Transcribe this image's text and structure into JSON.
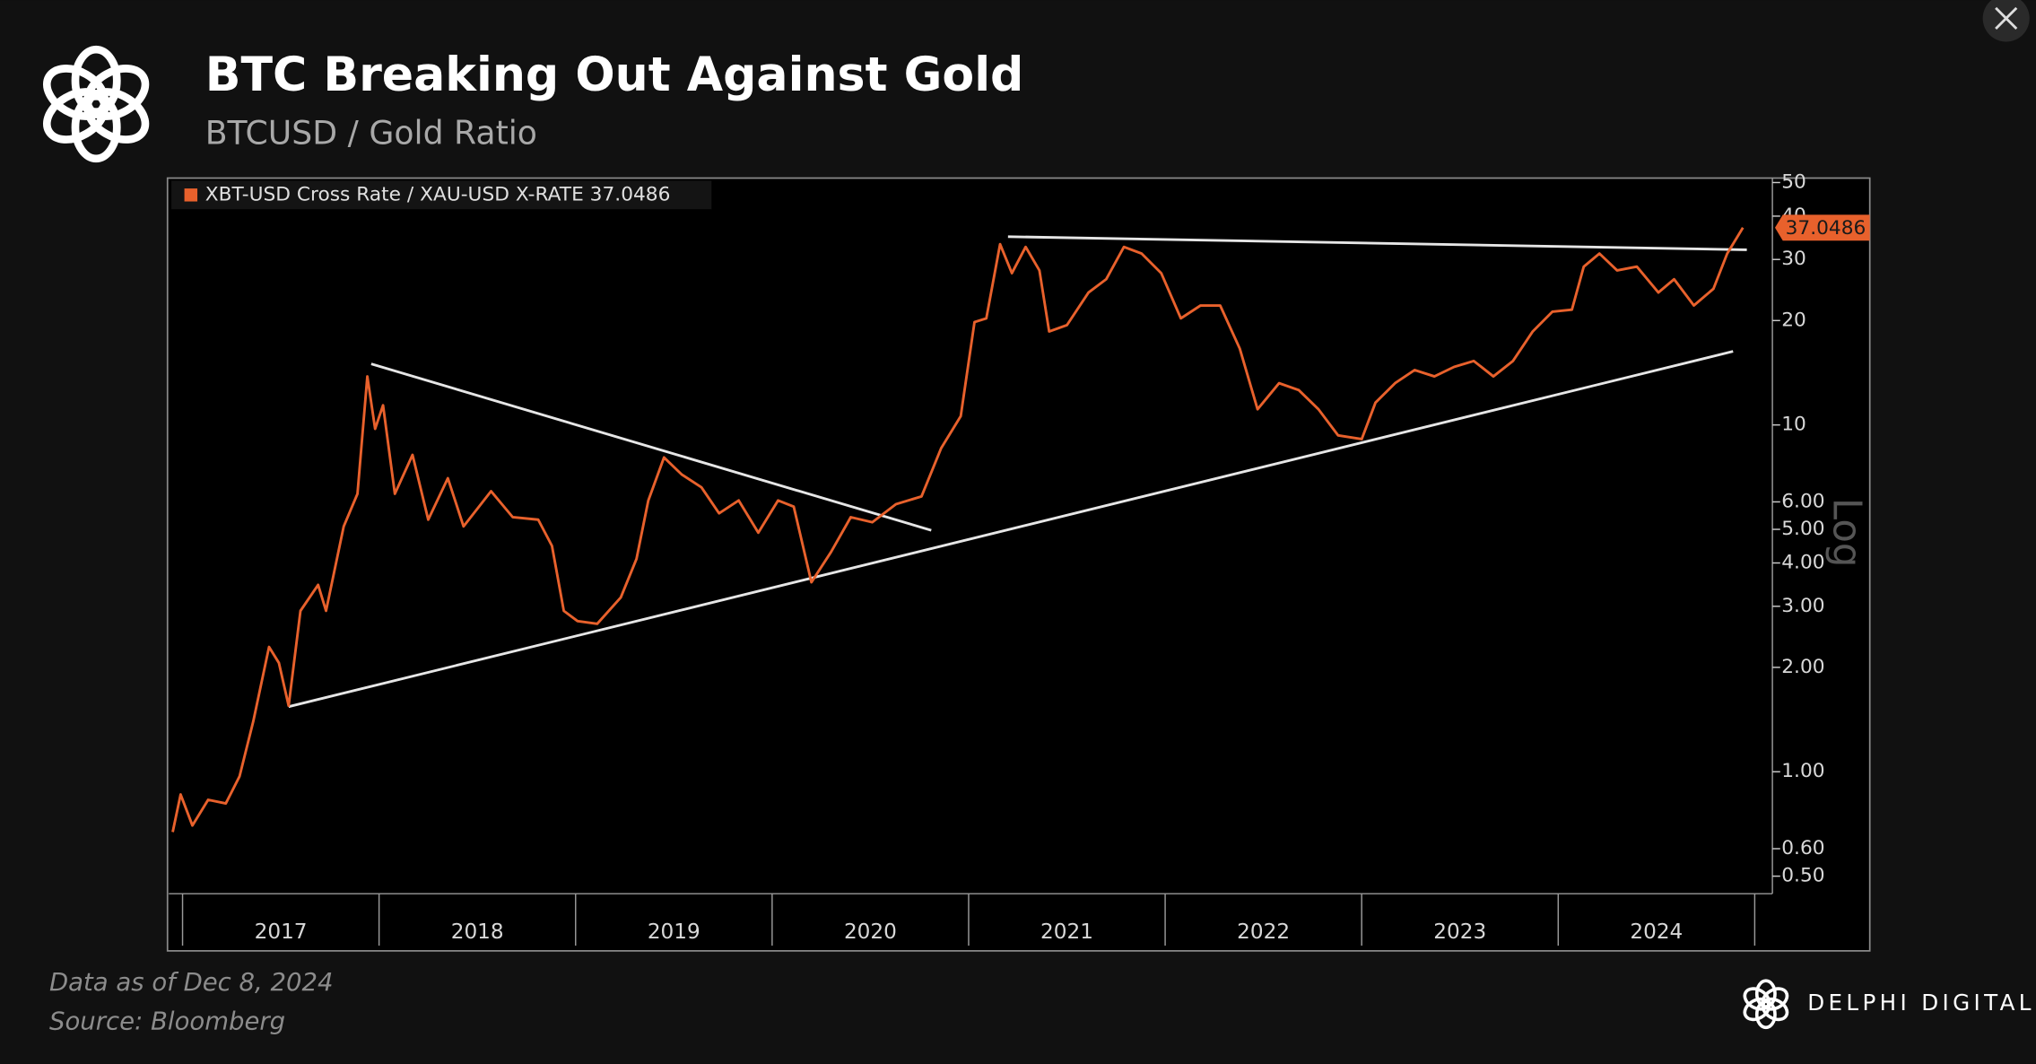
{
  "header": {
    "title": "BTC Breaking Out Against Gold",
    "subtitle": "BTCUSD / Gold Ratio"
  },
  "chart_data": {
    "type": "line",
    "log_y": true,
    "legend": "top-left",
    "scale_label": "Log",
    "x": [
      2016.95,
      2016.99,
      2017.05,
      2017.13,
      2017.22,
      2017.29,
      2017.36,
      2017.44,
      2017.49,
      2017.54,
      2017.6,
      2017.69,
      2017.73,
      2017.82,
      2017.89,
      2017.94,
      2017.98,
      2018.02,
      2018.08,
      2018.17,
      2018.25,
      2018.35,
      2018.43,
      2018.57,
      2018.68,
      2018.81,
      2018.88,
      2018.94,
      2019.01,
      2019.11,
      2019.23,
      2019.31,
      2019.37,
      2019.45,
      2019.54,
      2019.64,
      2019.73,
      2019.83,
      2019.93,
      2020.03,
      2020.11,
      2020.2,
      2020.3,
      2020.4,
      2020.51,
      2020.63,
      2020.76,
      2020.86,
      2020.96,
      2021.03,
      2021.09,
      2021.16,
      2021.22,
      2021.29,
      2021.36,
      2021.41,
      2021.5,
      2021.61,
      2021.7,
      2021.79,
      2021.88,
      2021.98,
      2022.08,
      2022.18,
      2022.28,
      2022.38,
      2022.47,
      2022.58,
      2022.68,
      2022.78,
      2022.88,
      2023.0,
      2023.07,
      2023.17,
      2023.27,
      2023.37,
      2023.47,
      2023.57,
      2023.67,
      2023.77,
      2023.87,
      2023.97,
      2024.07,
      2024.13,
      2024.21,
      2024.3,
      2024.4,
      2024.51,
      2024.59,
      2024.69,
      2024.79,
      2024.86,
      2024.94
    ],
    "series": [
      {
        "name": "XBT-USD Cross Rate / XAU-USD X-RATE 37.0486",
        "color": "#e8612c",
        "values": [
          0.67,
          0.86,
          0.7,
          0.83,
          0.81,
          0.97,
          1.4,
          2.29,
          2.06,
          1.55,
          2.91,
          3.46,
          2.91,
          5.1,
          6.33,
          13.8,
          9.74,
          11.4,
          6.33,
          8.2,
          5.33,
          7.02,
          5.1,
          6.44,
          5.42,
          5.33,
          4.48,
          2.91,
          2.72,
          2.67,
          3.18,
          4.11,
          6.06,
          8.06,
          7.2,
          6.61,
          5.56,
          6.06,
          4.89,
          6.06,
          5.81,
          3.52,
          4.3,
          5.42,
          5.24,
          5.91,
          6.22,
          8.57,
          10.6,
          19.8,
          20.3,
          33.2,
          27.4,
          32.6,
          27.9,
          18.6,
          19.4,
          24.1,
          26.3,
          32.6,
          31.2,
          27.4,
          20.3,
          22.1,
          22.1,
          16.6,
          11.1,
          13.2,
          12.6,
          11.1,
          9.33,
          9.1,
          11.6,
          13.2,
          14.4,
          13.8,
          14.7,
          15.3,
          13.8,
          15.3,
          18.6,
          21.2,
          21.5,
          28.6,
          31.2,
          27.9,
          28.6,
          24.1,
          26.3,
          22.1,
          24.7,
          31.2,
          37.0486
        ]
      }
    ],
    "trendlines": [
      {
        "x": [
          2017.96,
          2020.81
        ],
        "y": [
          15.0,
          4.97
        ]
      },
      {
        "x": [
          2017.54,
          2024.89
        ],
        "y": [
          1.54,
          16.3
        ]
      },
      {
        "x": [
          2021.2,
          2024.96
        ],
        "y": [
          34.9,
          32.0
        ]
      }
    ],
    "xlim": [
      2016.93,
      2025.09
    ],
    "xticks": [
      {
        "value": 2017.5,
        "label": "2017"
      },
      {
        "value": 2018.5,
        "label": "2018"
      },
      {
        "value": 2019.5,
        "label": "2019"
      },
      {
        "value": 2020.5,
        "label": "2020"
      },
      {
        "value": 2021.5,
        "label": "2021"
      },
      {
        "value": 2022.5,
        "label": "2022"
      },
      {
        "value": 2023.5,
        "label": "2023"
      },
      {
        "value": 2024.5,
        "label": "2024"
      }
    ],
    "ylim": [
      0.445,
      51.5
    ],
    "yticks": [
      {
        "value": 0.5,
        "label": "0.50"
      },
      {
        "value": 0.6,
        "label": "0.60"
      },
      {
        "value": 1,
        "label": "1.00"
      },
      {
        "value": 2,
        "label": "2.00"
      },
      {
        "value": 3,
        "label": "3.00"
      },
      {
        "value": 4,
        "label": "4.00"
      },
      {
        "value": 5,
        "label": "5.00"
      },
      {
        "value": 6,
        "label": "6.00"
      },
      10,
      20,
      30,
      40,
      50
    ]
  },
  "footer": {
    "note": "Data as of Dec 8, 2024",
    "source": "Source: Bloomberg",
    "brand": "DELPHI DIGITAL"
  }
}
